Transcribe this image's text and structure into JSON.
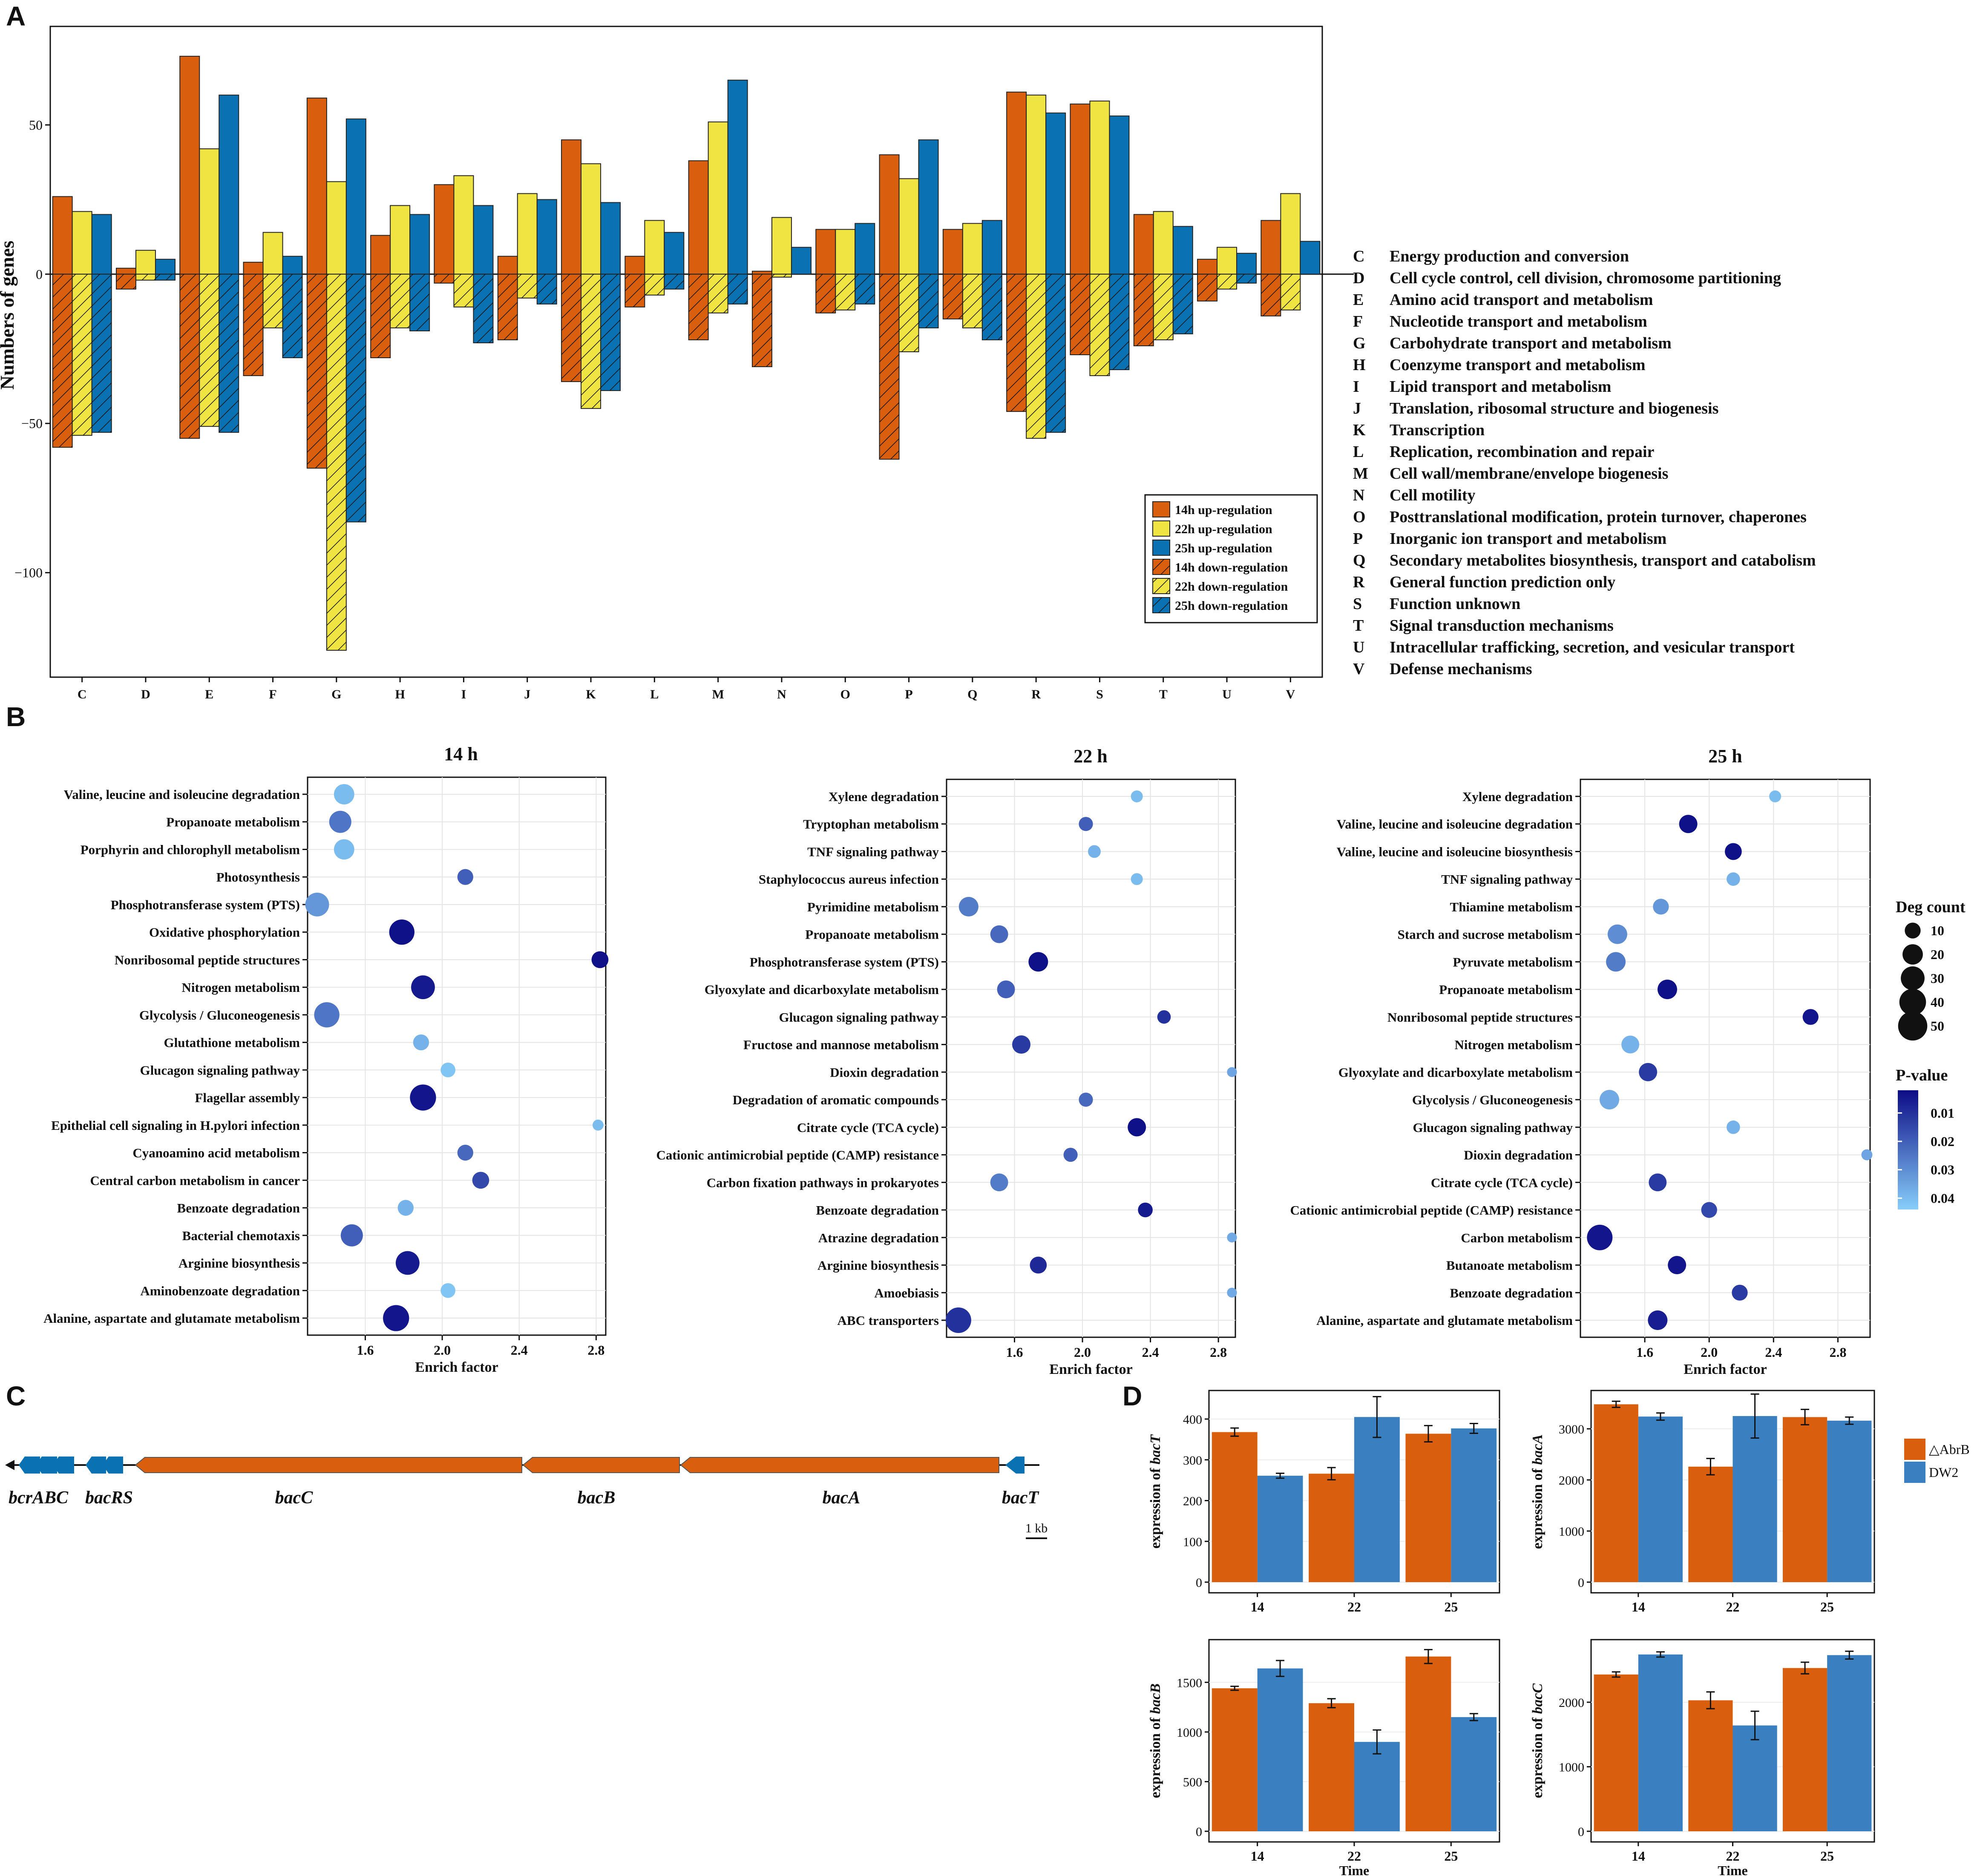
{
  "colors": {
    "c14": "#d95f0e",
    "c22": "#f0e442",
    "c25": "#0a72b2",
    "abrb": "#d95f0e",
    "dw2": "#3a80c0",
    "pLow": "#0c0c86",
    "pHigh": "#87cefa",
    "geneOrange": "#d95f0e",
    "geneBlue": "#0a72b2"
  },
  "panels": {
    "a": "A",
    "b": "B",
    "c": "C",
    "d": "D"
  },
  "panelA": {
    "ylabel": "Numbers of genes",
    "yticks": [
      50,
      0,
      -50,
      -100
    ],
    "ytick_labels": [
      "50",
      "0",
      "−50",
      "−100"
    ],
    "ylim": [
      -135,
      83
    ],
    "categories": [
      "C",
      "D",
      "E",
      "F",
      "G",
      "H",
      "I",
      "J",
      "K",
      "L",
      "M",
      "N",
      "O",
      "P",
      "Q",
      "R",
      "S",
      "T",
      "U",
      "V"
    ],
    "up": {
      "h14": [
        26,
        2,
        73,
        4,
        59,
        13,
        30,
        6,
        45,
        6,
        38,
        1,
        15,
        40,
        15,
        61,
        57,
        20,
        5,
        18
      ],
      "h22": [
        21,
        8,
        42,
        14,
        31,
        23,
        33,
        27,
        37,
        18,
        51,
        19,
        15,
        32,
        17,
        60,
        58,
        21,
        9,
        27
      ],
      "h25": [
        20,
        5,
        60,
        6,
        52,
        20,
        23,
        25,
        24,
        14,
        65,
        9,
        17,
        45,
        18,
        54,
        53,
        16,
        7,
        11
      ]
    },
    "down": {
      "h14": [
        -58,
        -5,
        -55,
        -34,
        -65,
        -28,
        -3,
        -22,
        -36,
        -11,
        -22,
        -31,
        -13,
        -62,
        -15,
        -46,
        -27,
        -24,
        -9,
        -14
      ],
      "h22": [
        -54,
        -2,
        -51,
        -18,
        -126,
        -18,
        -11,
        -8,
        -45,
        -7,
        -13,
        -1,
        -12,
        -26,
        -18,
        -55,
        -34,
        -22,
        -5,
        -12
      ],
      "h25": [
        -53,
        -2,
        -53,
        -28,
        -83,
        -19,
        -23,
        -10,
        -39,
        -5,
        -10,
        0,
        -10,
        -18,
        -22,
        -53,
        -32,
        -20,
        -3,
        0
      ]
    },
    "legend": [
      "14h up-regulation",
      "22h up-regulation",
      "25h up-regulation",
      "14h down-regulation",
      "22h down-regulation",
      "25h down-regulation"
    ],
    "cog": [
      {
        "code": "C",
        "desc": "Energy production and conversion"
      },
      {
        "code": "D",
        "desc": "Cell cycle control, cell division, chromosome partitioning"
      },
      {
        "code": "E",
        "desc": "Amino acid transport and metabolism"
      },
      {
        "code": "F",
        "desc": "Nucleotide transport and metabolism"
      },
      {
        "code": "G",
        "desc": "Carbohydrate transport and metabolism"
      },
      {
        "code": "H",
        "desc": "Coenzyme transport and metabolism"
      },
      {
        "code": "I",
        "desc": "Lipid transport and metabolism"
      },
      {
        "code": "J",
        "desc": "Translation, ribosomal structure and biogenesis"
      },
      {
        "code": "K",
        "desc": "Transcription"
      },
      {
        "code": "L",
        "desc": "Replication, recombination and repair"
      },
      {
        "code": "M",
        "desc": "Cell wall/membrane/envelope biogenesis"
      },
      {
        "code": "N",
        "desc": "Cell motility"
      },
      {
        "code": "O",
        "desc": "Posttranslational modification, protein turnover, chaperones"
      },
      {
        "code": "P",
        "desc": "Inorganic ion transport and metabolism"
      },
      {
        "code": "Q",
        "desc": "Secondary metabolites biosynthesis, transport and catabolism"
      },
      {
        "code": "R",
        "desc": "General function prediction only"
      },
      {
        "code": "S",
        "desc": "Function unknown"
      },
      {
        "code": "T",
        "desc": "Signal transduction mechanisms"
      },
      {
        "code": "U",
        "desc": "Intracellular trafficking, secretion, and vesicular transport"
      },
      {
        "code": "V",
        "desc": "Defense mechanisms"
      }
    ]
  },
  "panelB": {
    "xlabel": "Enrich factor",
    "legend_size_title": "Deg count",
    "legend_size_values": [
      10,
      20,
      30,
      40,
      50
    ],
    "legend_color_title": "P-value",
    "legend_color_values": [
      0.01,
      0.02,
      0.03,
      0.04
    ],
    "legend_color_labels": [
      "0.01",
      "0.02",
      "0.03",
      "0.04"
    ],
    "plots": [
      {
        "title": "14 h",
        "xlim": [
          1.3,
          2.85
        ],
        "xticks": [
          1.6,
          2.0,
          2.4,
          2.8
        ],
        "xtick_labels": [
          "1.6",
          "2.0",
          "2.4",
          "2.8"
        ],
        "terms": [
          {
            "name": "Valine, leucine and isoleucine degradation",
            "x": 1.49,
            "count": 20,
            "p": 0.04
          },
          {
            "name": "Propanoate metabolism",
            "x": 1.47,
            "count": 25,
            "p": 0.025
          },
          {
            "name": "Porphyrin and chlorophyll metabolism",
            "x": 1.49,
            "count": 20,
            "p": 0.04
          },
          {
            "name": "Photosynthesis",
            "x": 2.12,
            "count": 10,
            "p": 0.02
          },
          {
            "name": "Phosphotransferase system (PTS)",
            "x": 1.35,
            "count": 30,
            "p": 0.032
          },
          {
            "name": "Oxidative phosphorylation",
            "x": 1.79,
            "count": 35,
            "p": 0.003
          },
          {
            "name": "Nonribosomal peptide structures",
            "x": 2.82,
            "count": 12,
            "p": 0.003
          },
          {
            "name": "Nitrogen metabolism",
            "x": 1.9,
            "count": 30,
            "p": 0.005
          },
          {
            "name": "Glycolysis / Gluconeogenesis",
            "x": 1.4,
            "count": 35,
            "p": 0.025
          },
          {
            "name": "Glutathione metabolism",
            "x": 1.89,
            "count": 10,
            "p": 0.038
          },
          {
            "name": "Glucagon signaling pathway",
            "x": 2.03,
            "count": 8,
            "p": 0.042
          },
          {
            "name": "Flagellar assembly",
            "x": 1.9,
            "count": 38,
            "p": 0.004
          },
          {
            "name": "Epithelial cell signaling in H.pylori infection",
            "x": 2.81,
            "count": 3,
            "p": 0.04
          },
          {
            "name": "Cyanoamino acid metabolism",
            "x": 2.12,
            "count": 10,
            "p": 0.022
          },
          {
            "name": "Central carbon metabolism in cancer",
            "x": 2.2,
            "count": 12,
            "p": 0.015
          },
          {
            "name": "Benzoate degradation",
            "x": 1.81,
            "count": 10,
            "p": 0.038
          },
          {
            "name": "Bacterial chemotaxis",
            "x": 1.53,
            "count": 25,
            "p": 0.02
          },
          {
            "name": "Arginine biosynthesis",
            "x": 1.82,
            "count": 30,
            "p": 0.005
          },
          {
            "name": "Aminobenzoate degradation",
            "x": 2.03,
            "count": 8,
            "p": 0.042
          },
          {
            "name": "Alanine, aspartate and glutamate metabolism",
            "x": 1.76,
            "count": 38,
            "p": 0.004
          }
        ]
      },
      {
        "title": "22 h",
        "xlim": [
          1.2,
          2.9
        ],
        "xticks": [
          1.6,
          2.0,
          2.4,
          2.8
        ],
        "xtick_labels": [
          "1.6",
          "2.0",
          "2.4",
          "2.8"
        ],
        "terms": [
          {
            "name": "Xylene degradation",
            "x": 2.32,
            "count": 4,
            "p": 0.04
          },
          {
            "name": "Tryptophan metabolism",
            "x": 2.02,
            "count": 7,
            "p": 0.02
          },
          {
            "name": "TNF signaling pathway",
            "x": 2.07,
            "count": 5,
            "p": 0.038
          },
          {
            "name": "Staphylococcus aureus infection",
            "x": 2.32,
            "count": 4,
            "p": 0.04
          },
          {
            "name": "Pyrimidine metabolism",
            "x": 1.33,
            "count": 18,
            "p": 0.026
          },
          {
            "name": "Propanoate metabolism",
            "x": 1.51,
            "count": 14,
            "p": 0.022
          },
          {
            "name": "Phosphotransferase system (PTS)",
            "x": 1.74,
            "count": 18,
            "p": 0.003
          },
          {
            "name": "Glyoxylate and dicarboxylate metabolism",
            "x": 1.55,
            "count": 14,
            "p": 0.02
          },
          {
            "name": "Glucagon signaling pathway",
            "x": 2.48,
            "count": 6,
            "p": 0.01
          },
          {
            "name": "Fructose and mannose metabolism",
            "x": 1.64,
            "count": 15,
            "p": 0.012
          },
          {
            "name": "Dioxin degradation",
            "x": 2.88,
            "count": 2,
            "p": 0.035
          },
          {
            "name": "Degradation of aromatic compounds",
            "x": 2.02,
            "count": 7,
            "p": 0.022
          },
          {
            "name": "Citrate cycle (TCA cycle)",
            "x": 2.32,
            "count": 15,
            "p": 0.003
          },
          {
            "name": "Cationic antimicrobial peptide (CAMP) resistance",
            "x": 1.93,
            "count": 7,
            "p": 0.02
          },
          {
            "name": "Carbon fixation pathways in prokaryotes",
            "x": 1.51,
            "count": 14,
            "p": 0.026
          },
          {
            "name": "Benzoate degradation",
            "x": 2.37,
            "count": 8,
            "p": 0.005
          },
          {
            "name": "Atrazine degradation",
            "x": 2.88,
            "count": 2,
            "p": 0.036
          },
          {
            "name": "Arginine biosynthesis",
            "x": 1.74,
            "count": 12,
            "p": 0.008
          },
          {
            "name": "Amoebiasis",
            "x": 2.88,
            "count": 2,
            "p": 0.036
          },
          {
            "name": "ABC transporters",
            "x": 1.27,
            "count": 36,
            "p": 0.01
          }
        ]
      },
      {
        "title": "25 h",
        "xlim": [
          1.2,
          3.0
        ],
        "xticks": [
          1.6,
          2.0,
          2.4,
          2.8
        ],
        "xtick_labels": [
          "1.6",
          "2.0",
          "2.4",
          "2.8"
        ],
        "terms": [
          {
            "name": "Xylene degradation",
            "x": 2.41,
            "count": 4,
            "p": 0.04
          },
          {
            "name": "Valine, leucine and isoleucine degradation",
            "x": 1.87,
            "count": 15,
            "p": 0.003
          },
          {
            "name": "Valine, leucine and isoleucine biosynthesis",
            "x": 2.15,
            "count": 12,
            "p": 0.003
          },
          {
            "name": "TNF signaling pathway",
            "x": 2.15,
            "count": 6,
            "p": 0.038
          },
          {
            "name": "Thiamine metabolism",
            "x": 1.7,
            "count": 10,
            "p": 0.032
          },
          {
            "name": "Starch and sucrose metabolism",
            "x": 1.43,
            "count": 18,
            "p": 0.03
          },
          {
            "name": "Pyruvate metabolism",
            "x": 1.42,
            "count": 18,
            "p": 0.026
          },
          {
            "name": "Propanoate metabolism",
            "x": 1.74,
            "count": 18,
            "p": 0.003
          },
          {
            "name": "Nonribosomal peptide structures",
            "x": 2.63,
            "count": 10,
            "p": 0.004
          },
          {
            "name": "Nitrogen metabolism",
            "x": 1.51,
            "count": 14,
            "p": 0.038
          },
          {
            "name": "Glyoxylate and dicarboxylate metabolism",
            "x": 1.62,
            "count": 15,
            "p": 0.012
          },
          {
            "name": "Glycolysis / Gluconeogenesis",
            "x": 1.38,
            "count": 18,
            "p": 0.036
          },
          {
            "name": "Glucagon signaling pathway",
            "x": 2.15,
            "count": 6,
            "p": 0.038
          },
          {
            "name": "Dioxin degradation",
            "x": 2.98,
            "count": 3,
            "p": 0.035
          },
          {
            "name": "Citrate cycle (TCA cycle)",
            "x": 1.68,
            "count": 14,
            "p": 0.012
          },
          {
            "name": "Cationic antimicrobial peptide (CAMP) resistance",
            "x": 2.0,
            "count": 10,
            "p": 0.015
          },
          {
            "name": "Carbon metabolism",
            "x": 1.32,
            "count": 36,
            "p": 0.004
          },
          {
            "name": "Butanoate metabolism",
            "x": 1.8,
            "count": 15,
            "p": 0.004
          },
          {
            "name": "Benzoate degradation",
            "x": 2.19,
            "count": 10,
            "p": 0.012
          },
          {
            "name": "Alanine, aspartate and glutamate metabolism",
            "x": 1.68,
            "count": 18,
            "p": 0.006
          }
        ]
      }
    ]
  },
  "panelC": {
    "labels": {
      "bcrABC": "bcrABC",
      "bacRS": "bacRS",
      "bacC": "bacC",
      "bacB": "bacB",
      "bacA": "bacA",
      "bacT": "bacT"
    },
    "scale_label": "1 kb"
  },
  "panelD": {
    "legend": [
      "△AbrB",
      "DW2"
    ],
    "xlabel": "Time",
    "x": [
      "14",
      "22",
      "25"
    ],
    "plots": [
      {
        "ylabel_prefix": "expression of ",
        "gene": "bacT",
        "ymax": 470,
        "yticks": [
          0,
          100,
          200,
          300,
          400
        ],
        "abrb": [
          368,
          266,
          364
        ],
        "abrb_err": [
          10,
          15,
          20
        ],
        "dw2": [
          261,
          405,
          377
        ],
        "dw2_err": [
          6,
          50,
          12
        ]
      },
      {
        "ylabel_prefix": "expression of ",
        "gene": "bacA",
        "ymax": 3750,
        "yticks": [
          0,
          1000,
          2000,
          3000
        ],
        "abrb": [
          3480,
          2260,
          3230
        ],
        "abrb_err": [
          60,
          160,
          150
        ],
        "dw2": [
          3240,
          3250,
          3160
        ],
        "dw2_err": [
          70,
          430,
          70
        ]
      },
      {
        "ylabel_prefix": "expression of ",
        "gene": "bacB",
        "ymax": 1930,
        "yticks": [
          0,
          500,
          1000,
          1500
        ],
        "abrb": [
          1440,
          1290,
          1760
        ],
        "abrb_err": [
          20,
          45,
          70
        ],
        "dw2": [
          1640,
          900,
          1150
        ],
        "dw2_err": [
          80,
          120,
          35
        ]
      },
      {
        "ylabel_prefix": "expression of ",
        "gene": "bacC",
        "ymax": 2970,
        "yticks": [
          0,
          1000,
          2000
        ],
        "abrb": [
          2430,
          2030,
          2530
        ],
        "abrb_err": [
          40,
          130,
          90
        ],
        "dw2": [
          2740,
          1640,
          2730
        ],
        "dw2_err": [
          40,
          220,
          60
        ]
      }
    ]
  }
}
